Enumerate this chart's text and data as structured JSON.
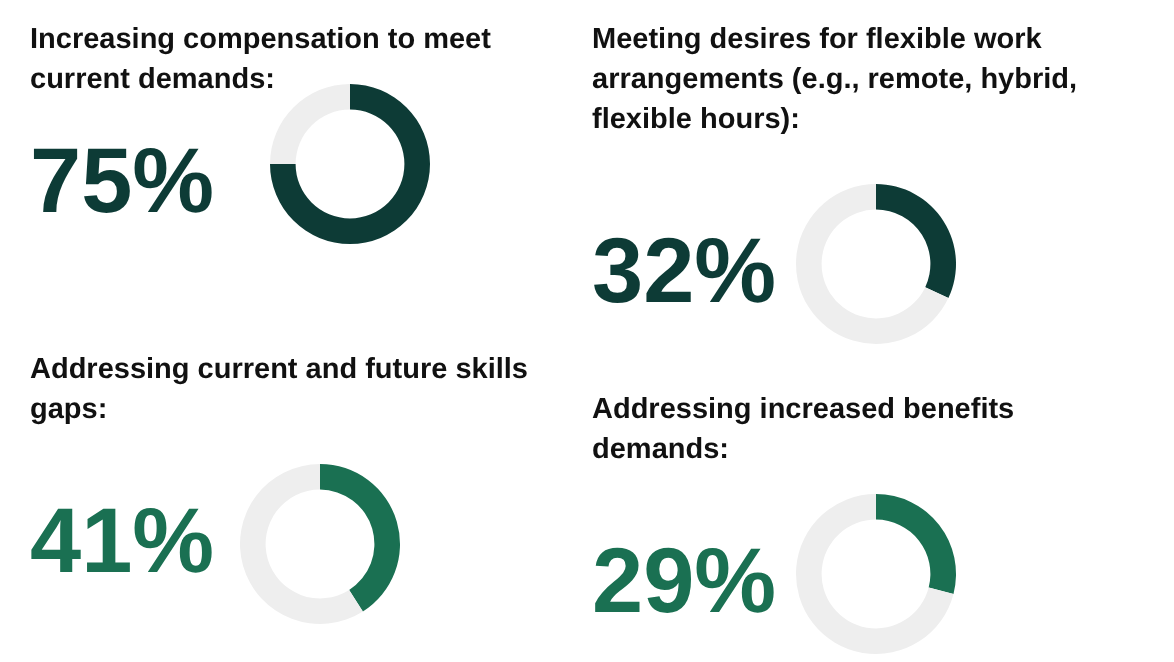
{
  "chart_data": [
    {
      "type": "donut",
      "title": "Increasing compensation to meet current demands:",
      "categories": [
        null,
        null
      ],
      "values": [
        75,
        25
      ],
      "colors": [
        "#0d3b36",
        "#eeeeee"
      ],
      "annotations": [
        "75%"
      ]
    },
    {
      "type": "donut",
      "title": "Meeting desires for flexible work arrangements (e.g., remote, hybrid, flexible hours):",
      "categories": [
        null,
        null
      ],
      "values": [
        32,
        68
      ],
      "colors": [
        "#0d3b36",
        "#eeeeee"
      ],
      "annotations": [
        "32%"
      ]
    },
    {
      "type": "donut",
      "title": "Addressing current and future skills gaps:",
      "categories": [
        null,
        null
      ],
      "values": [
        41,
        59
      ],
      "colors": [
        "#1a7052",
        "#eeeeee"
      ],
      "annotations": [
        "41%"
      ]
    },
    {
      "type": "donut",
      "title": "Addressing increased benefits demands:",
      "categories": [
        null,
        null
      ],
      "values": [
        29,
        71
      ],
      "colors": [
        "#1a7052",
        "#eeeeee"
      ],
      "annotations": [
        "29%"
      ]
    }
  ]
}
